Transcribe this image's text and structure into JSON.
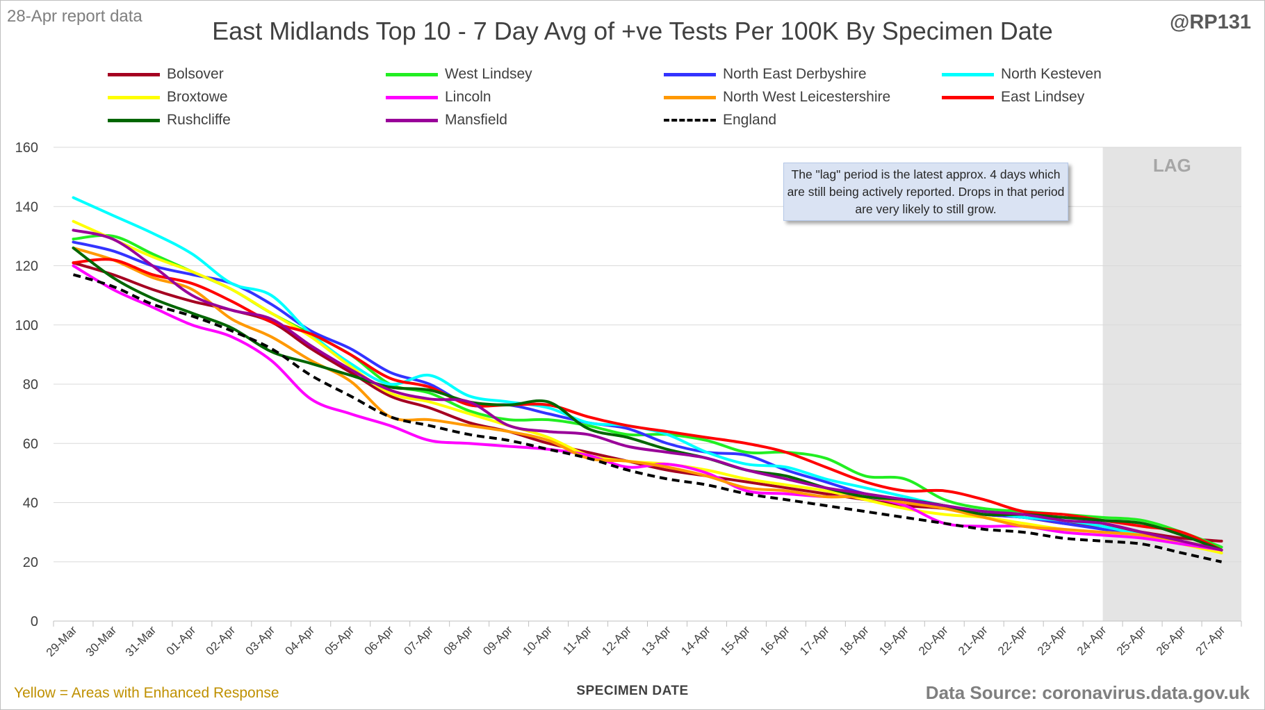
{
  "report_date": "28-Apr report data",
  "handle": "@RP131",
  "footnote": "Yellow = Areas with Enhanced Response",
  "source": "Data Source: coronavirus.data.gov.uk",
  "annotation": "The \"lag\" period is the latest approx. 4 days which are still being actively reported. Drops in that period are very likely to still grow.",
  "chart_data": {
    "type": "line",
    "title": "East Midlands Top 10 - 7 Day Avg of +ve Tests Per 100K By Specimen Date",
    "xlabel": "SPECIMEN DATE",
    "ylabel": "",
    "ylim": [
      0,
      160
    ],
    "yticks": [
      0,
      20,
      40,
      60,
      80,
      100,
      120,
      140,
      160
    ],
    "grid": true,
    "legend_position": "top",
    "lag_label": "LAG",
    "lag_range": [
      "24-Apr",
      "27-Apr"
    ],
    "categories": [
      "29-Mar",
      "30-Mar",
      "31-Mar",
      "01-Apr",
      "02-Apr",
      "03-Apr",
      "04-Apr",
      "05-Apr",
      "06-Apr",
      "07-Apr",
      "08-Apr",
      "09-Apr",
      "10-Apr",
      "11-Apr",
      "12-Apr",
      "13-Apr",
      "14-Apr",
      "15-Apr",
      "16-Apr",
      "17-Apr",
      "18-Apr",
      "19-Apr",
      "20-Apr",
      "21-Apr",
      "22-Apr",
      "23-Apr",
      "24-Apr",
      "25-Apr",
      "26-Apr",
      "27-Apr"
    ],
    "series": [
      {
        "name": "Bolsover",
        "color": "#a50021",
        "dashed": false,
        "values": [
          121,
          117,
          112,
          108,
          105,
          101,
          92,
          84,
          76,
          72,
          67,
          64,
          60,
          57,
          54,
          51,
          49,
          47,
          45,
          43,
          41,
          39,
          38,
          36,
          35,
          33,
          32,
          30,
          28,
          27
        ]
      },
      {
        "name": "West Lindsey",
        "color": "#22ee22",
        "dashed": false,
        "values": [
          129,
          130,
          124,
          118,
          112,
          104,
          97,
          90,
          80,
          77,
          71,
          68,
          68,
          66,
          63,
          63,
          61,
          57,
          57,
          55,
          49,
          48,
          41,
          38,
          37,
          36,
          35,
          34,
          30,
          25
        ]
      },
      {
        "name": "North East Derbyshire",
        "color": "#3333ff",
        "dashed": false,
        "values": [
          128,
          125,
          120,
          117,
          114,
          107,
          98,
          92,
          84,
          80,
          73,
          73,
          70,
          67,
          65,
          60,
          57,
          56,
          51,
          47,
          43,
          41,
          38,
          36,
          35,
          33,
          31,
          29,
          27,
          23
        ]
      },
      {
        "name": "North Kesteven",
        "color": "#00ffff",
        "dashed": false,
        "values": [
          143,
          137,
          131,
          124,
          114,
          110,
          97,
          87,
          80,
          83,
          76,
          74,
          72,
          67,
          66,
          63,
          57,
          53,
          52,
          48,
          45,
          42,
          39,
          37,
          35,
          34,
          32,
          29,
          27,
          24
        ]
      },
      {
        "name": "Broxtowe",
        "color": "#ffff00",
        "dashed": false,
        "values": [
          135,
          129,
          123,
          118,
          112,
          104,
          96,
          86,
          77,
          74,
          70,
          66,
          62,
          56,
          54,
          53,
          51,
          48,
          46,
          44,
          41,
          38,
          36,
          35,
          33,
          31,
          30,
          29,
          26,
          23
        ]
      },
      {
        "name": "Lincoln",
        "color": "#ff00ff",
        "dashed": false,
        "values": [
          120,
          112,
          106,
          100,
          96,
          88,
          75,
          70,
          66,
          61,
          60,
          59,
          58,
          56,
          52,
          53,
          50,
          44,
          43,
          42,
          42,
          39,
          33,
          32,
          32,
          30,
          29,
          28,
          26,
          24
        ]
      },
      {
        "name": "North West Leicestershire",
        "color": "#ff9900",
        "dashed": false,
        "values": [
          126,
          122,
          116,
          112,
          102,
          96,
          88,
          81,
          69,
          68,
          66,
          64,
          61,
          55,
          54,
          52,
          49,
          45,
          44,
          42,
          42,
          40,
          38,
          35,
          32,
          31,
          30,
          29,
          27,
          24
        ]
      },
      {
        "name": "East Lindsey",
        "color": "#ff0000",
        "dashed": false,
        "values": [
          121,
          122,
          117,
          114,
          108,
          101,
          97,
          90,
          82,
          79,
          73,
          73,
          73,
          69,
          66,
          64,
          62,
          60,
          57,
          52,
          47,
          44,
          44,
          41,
          37,
          36,
          34,
          32,
          30,
          24
        ]
      },
      {
        "name": "Rushcliffe",
        "color": "#006600",
        "dashed": false,
        "values": [
          126,
          116,
          109,
          104,
          99,
          91,
          87,
          83,
          79,
          78,
          74,
          73,
          74,
          65,
          62,
          58,
          55,
          51,
          49,
          45,
          42,
          41,
          39,
          36,
          36,
          35,
          34,
          33,
          29,
          24
        ]
      },
      {
        "name": "Mansfield",
        "color": "#990099",
        "dashed": false,
        "values": [
          132,
          129,
          120,
          110,
          105,
          102,
          93,
          85,
          78,
          75,
          74,
          66,
          64,
          63,
          59,
          57,
          55,
          51,
          48,
          45,
          43,
          41,
          39,
          37,
          36,
          34,
          33,
          30,
          27,
          24
        ]
      },
      {
        "name": "England",
        "color": "#000000",
        "dashed": true,
        "values": [
          117,
          113,
          107,
          103,
          98,
          92,
          83,
          76,
          69,
          66,
          63,
          61,
          58,
          55,
          51,
          48,
          46,
          43,
          41,
          39,
          37,
          35,
          33,
          31,
          30,
          28,
          27,
          26,
          23,
          20
        ]
      }
    ]
  }
}
